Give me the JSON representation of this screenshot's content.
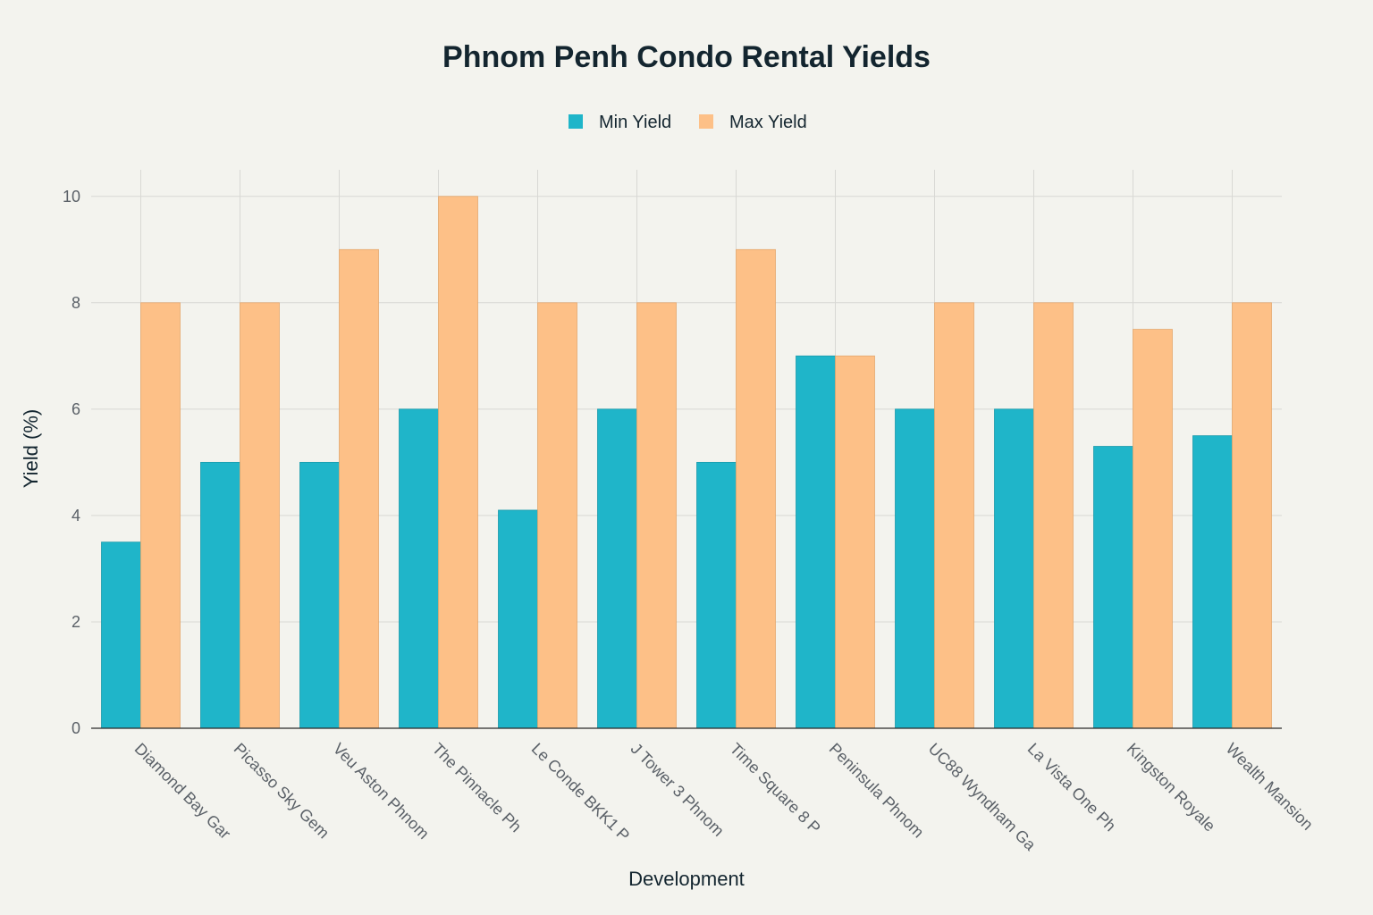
{
  "chart_data": {
    "type": "bar",
    "title": "Phnom Penh Condo Rental Yields",
    "xlabel": "Development",
    "ylabel": "Yield (%)",
    "ylim": [
      0,
      10.5
    ],
    "yticks": [
      0,
      2,
      4,
      6,
      8,
      10
    ],
    "grid": true,
    "legend_position": "top-center",
    "categories": [
      "Diamond Bay Gar",
      "Picasso Sky Gem",
      "Veu Aston Phnom",
      "The Pinnacle Ph",
      "Le Conde BKK1 P",
      "J Tower 3 Phnom",
      "Time Square 8 P",
      "Peninsula Phnom",
      "UC88 Wyndham Ga",
      "La Vista One Ph",
      "Kingston Royale",
      "Wealth Mansion"
    ],
    "series": [
      {
        "name": "Min Yield",
        "color": "#1fb5c9",
        "values": [
          3.5,
          5,
          5,
          6,
          4.1,
          6,
          5,
          7,
          6,
          6,
          5.3,
          5.5
        ]
      },
      {
        "name": "Max Yield",
        "color": "#fdc087",
        "values": [
          8,
          8,
          9,
          10,
          8,
          8,
          9,
          7,
          8,
          8,
          7.5,
          8
        ]
      }
    ]
  }
}
